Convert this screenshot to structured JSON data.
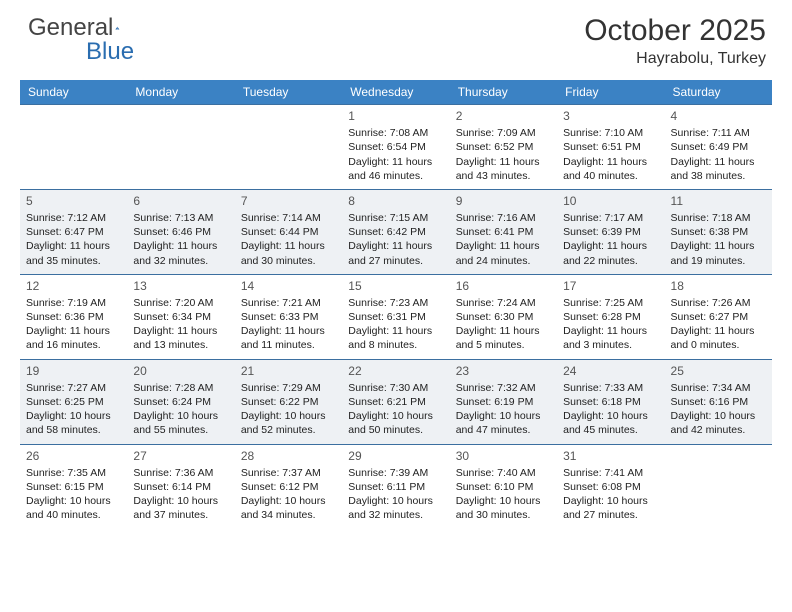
{
  "brand": {
    "part1": "General",
    "part2": "Blue"
  },
  "title": "October 2025",
  "location": "Hayrabolu, Turkey",
  "colors": {
    "header_bg": "#3b82c4",
    "border": "#3b6fa0",
    "alt_row": "#eef1f4",
    "text": "#222"
  },
  "day_headers": [
    "Sunday",
    "Monday",
    "Tuesday",
    "Wednesday",
    "Thursday",
    "Friday",
    "Saturday"
  ],
  "weeks": [
    {
      "alt": false,
      "days": [
        {
          "n": "",
          "lines": []
        },
        {
          "n": "",
          "lines": []
        },
        {
          "n": "",
          "lines": []
        },
        {
          "n": "1",
          "lines": [
            "Sunrise: 7:08 AM",
            "Sunset: 6:54 PM",
            "Daylight: 11 hours and 46 minutes."
          ]
        },
        {
          "n": "2",
          "lines": [
            "Sunrise: 7:09 AM",
            "Sunset: 6:52 PM",
            "Daylight: 11 hours and 43 minutes."
          ]
        },
        {
          "n": "3",
          "lines": [
            "Sunrise: 7:10 AM",
            "Sunset: 6:51 PM",
            "Daylight: 11 hours and 40 minutes."
          ]
        },
        {
          "n": "4",
          "lines": [
            "Sunrise: 7:11 AM",
            "Sunset: 6:49 PM",
            "Daylight: 11 hours and 38 minutes."
          ]
        }
      ]
    },
    {
      "alt": true,
      "days": [
        {
          "n": "5",
          "lines": [
            "Sunrise: 7:12 AM",
            "Sunset: 6:47 PM",
            "Daylight: 11 hours and 35 minutes."
          ]
        },
        {
          "n": "6",
          "lines": [
            "Sunrise: 7:13 AM",
            "Sunset: 6:46 PM",
            "Daylight: 11 hours and 32 minutes."
          ]
        },
        {
          "n": "7",
          "lines": [
            "Sunrise: 7:14 AM",
            "Sunset: 6:44 PM",
            "Daylight: 11 hours and 30 minutes."
          ]
        },
        {
          "n": "8",
          "lines": [
            "Sunrise: 7:15 AM",
            "Sunset: 6:42 PM",
            "Daylight: 11 hours and 27 minutes."
          ]
        },
        {
          "n": "9",
          "lines": [
            "Sunrise: 7:16 AM",
            "Sunset: 6:41 PM",
            "Daylight: 11 hours and 24 minutes."
          ]
        },
        {
          "n": "10",
          "lines": [
            "Sunrise: 7:17 AM",
            "Sunset: 6:39 PM",
            "Daylight: 11 hours and 22 minutes."
          ]
        },
        {
          "n": "11",
          "lines": [
            "Sunrise: 7:18 AM",
            "Sunset: 6:38 PM",
            "Daylight: 11 hours and 19 minutes."
          ]
        }
      ]
    },
    {
      "alt": false,
      "days": [
        {
          "n": "12",
          "lines": [
            "Sunrise: 7:19 AM",
            "Sunset: 6:36 PM",
            "Daylight: 11 hours and 16 minutes."
          ]
        },
        {
          "n": "13",
          "lines": [
            "Sunrise: 7:20 AM",
            "Sunset: 6:34 PM",
            "Daylight: 11 hours and 13 minutes."
          ]
        },
        {
          "n": "14",
          "lines": [
            "Sunrise: 7:21 AM",
            "Sunset: 6:33 PM",
            "Daylight: 11 hours and 11 minutes."
          ]
        },
        {
          "n": "15",
          "lines": [
            "Sunrise: 7:23 AM",
            "Sunset: 6:31 PM",
            "Daylight: 11 hours and 8 minutes."
          ]
        },
        {
          "n": "16",
          "lines": [
            "Sunrise: 7:24 AM",
            "Sunset: 6:30 PM",
            "Daylight: 11 hours and 5 minutes."
          ]
        },
        {
          "n": "17",
          "lines": [
            "Sunrise: 7:25 AM",
            "Sunset: 6:28 PM",
            "Daylight: 11 hours and 3 minutes."
          ]
        },
        {
          "n": "18",
          "lines": [
            "Sunrise: 7:26 AM",
            "Sunset: 6:27 PM",
            "Daylight: 11 hours and 0 minutes."
          ]
        }
      ]
    },
    {
      "alt": true,
      "days": [
        {
          "n": "19",
          "lines": [
            "Sunrise: 7:27 AM",
            "Sunset: 6:25 PM",
            "Daylight: 10 hours and 58 minutes."
          ]
        },
        {
          "n": "20",
          "lines": [
            "Sunrise: 7:28 AM",
            "Sunset: 6:24 PM",
            "Daylight: 10 hours and 55 minutes."
          ]
        },
        {
          "n": "21",
          "lines": [
            "Sunrise: 7:29 AM",
            "Sunset: 6:22 PM",
            "Daylight: 10 hours and 52 minutes."
          ]
        },
        {
          "n": "22",
          "lines": [
            "Sunrise: 7:30 AM",
            "Sunset: 6:21 PM",
            "Daylight: 10 hours and 50 minutes."
          ]
        },
        {
          "n": "23",
          "lines": [
            "Sunrise: 7:32 AM",
            "Sunset: 6:19 PM",
            "Daylight: 10 hours and 47 minutes."
          ]
        },
        {
          "n": "24",
          "lines": [
            "Sunrise: 7:33 AM",
            "Sunset: 6:18 PM",
            "Daylight: 10 hours and 45 minutes."
          ]
        },
        {
          "n": "25",
          "lines": [
            "Sunrise: 7:34 AM",
            "Sunset: 6:16 PM",
            "Daylight: 10 hours and 42 minutes."
          ]
        }
      ]
    },
    {
      "alt": false,
      "days": [
        {
          "n": "26",
          "lines": [
            "Sunrise: 7:35 AM",
            "Sunset: 6:15 PM",
            "Daylight: 10 hours and 40 minutes."
          ]
        },
        {
          "n": "27",
          "lines": [
            "Sunrise: 7:36 AM",
            "Sunset: 6:14 PM",
            "Daylight: 10 hours and 37 minutes."
          ]
        },
        {
          "n": "28",
          "lines": [
            "Sunrise: 7:37 AM",
            "Sunset: 6:12 PM",
            "Daylight: 10 hours and 34 minutes."
          ]
        },
        {
          "n": "29",
          "lines": [
            "Sunrise: 7:39 AM",
            "Sunset: 6:11 PM",
            "Daylight: 10 hours and 32 minutes."
          ]
        },
        {
          "n": "30",
          "lines": [
            "Sunrise: 7:40 AM",
            "Sunset: 6:10 PM",
            "Daylight: 10 hours and 30 minutes."
          ]
        },
        {
          "n": "31",
          "lines": [
            "Sunrise: 7:41 AM",
            "Sunset: 6:08 PM",
            "Daylight: 10 hours and 27 minutes."
          ]
        },
        {
          "n": "",
          "lines": []
        }
      ]
    }
  ]
}
